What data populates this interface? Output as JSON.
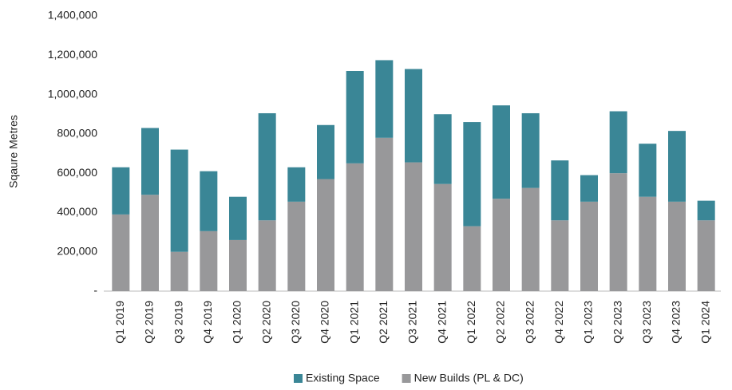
{
  "chart_data": {
    "type": "stacked_bar",
    "y_label": "Sqaure Metres",
    "categories": [
      "Q1 2019",
      "Q2 2019",
      "Q3 2019",
      "Q4 2019",
      "Q1 2020",
      "Q2 2020",
      "Q3 2020",
      "Q4 2020",
      "Q1 2021",
      "Q2 2021",
      "Q3 2021",
      "Q4 2021",
      "Q1 2022",
      "Q2 2022",
      "Q3 2022",
      "Q4 2022",
      "Q1 2023",
      "Q2 2023",
      "Q3 2023",
      "Q4 2023",
      "Q1 2024"
    ],
    "series": [
      {
        "name": "Existing Space",
        "color": "#3a8696",
        "values": [
          240000,
          340000,
          520000,
          305000,
          220000,
          545000,
          175000,
          275000,
          470000,
          395000,
          475000,
          355000,
          530000,
          475000,
          380000,
          305000,
          135000,
          315000,
          270000,
          360000,
          100000
        ]
      },
      {
        "name": "New Builds (PL & DC)",
        "color": "#98989a",
        "values": [
          390000,
          490000,
          200000,
          305000,
          260000,
          360000,
          455000,
          570000,
          650000,
          780000,
          655000,
          545000,
          330000,
          470000,
          525000,
          360000,
          455000,
          600000,
          480000,
          455000,
          360000
        ]
      }
    ],
    "ylim": [
      0,
      1400000
    ],
    "yticks": [
      {
        "value": 0,
        "label": "-"
      },
      {
        "value": 200000,
        "label": "200,000"
      },
      {
        "value": 400000,
        "label": "400,000"
      },
      {
        "value": 600000,
        "label": "600,000"
      },
      {
        "value": 800000,
        "label": "800,000"
      },
      {
        "value": 1000000,
        "label": "1,000,000"
      },
      {
        "value": 1200000,
        "label": "1,200,000"
      },
      {
        "value": 1400000,
        "label": "1,400,000"
      }
    ],
    "grid": false,
    "legend": "bottom"
  }
}
